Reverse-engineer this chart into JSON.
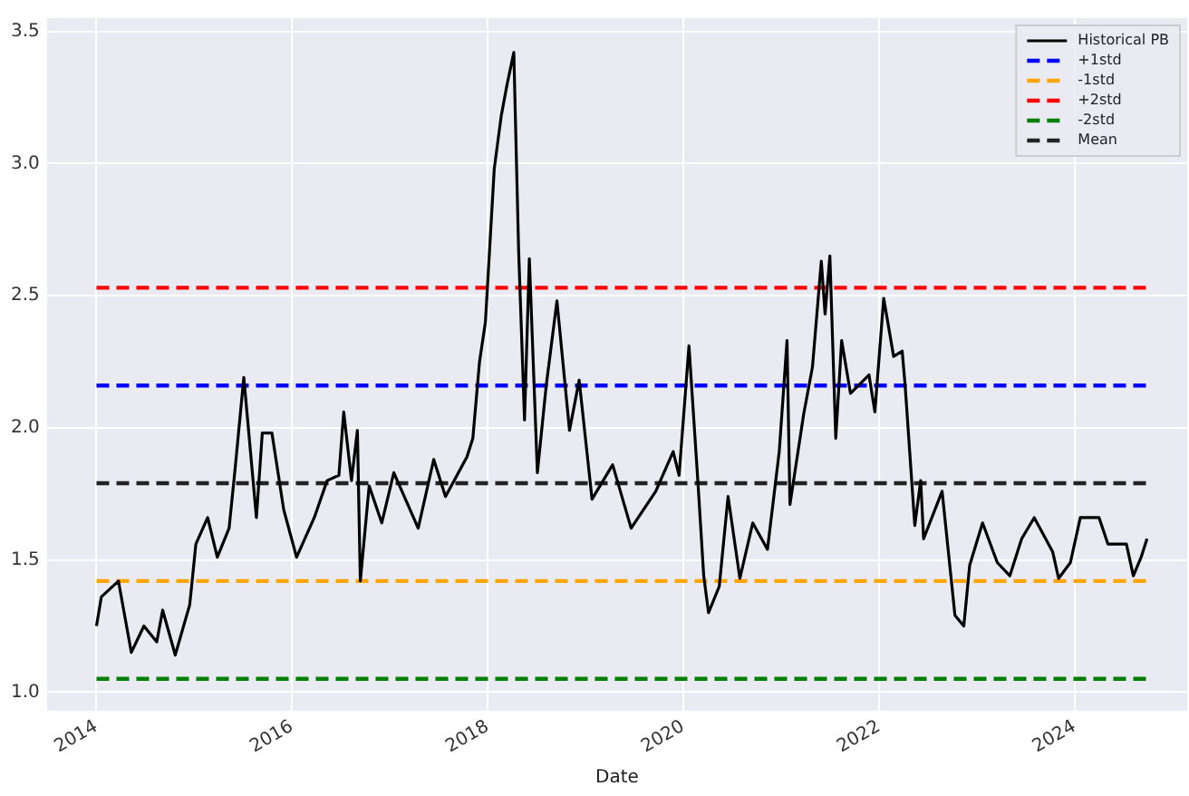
{
  "chart_data": {
    "type": "line",
    "xlabel": "Date",
    "legend": "top right",
    "grid": true,
    "marker": "none",
    "xlim": [
      "2013-07-01",
      "2025-02-25"
    ],
    "ylim": [
      0.93,
      3.55
    ],
    "xticks": [
      {
        "value": "2014-01-01",
        "label": "2014"
      },
      {
        "value": "2016-01-01",
        "label": "2016"
      },
      {
        "value": "2018-01-01",
        "label": "2018"
      },
      {
        "value": "2020-01-01",
        "label": "2020"
      },
      {
        "value": "2022-01-01",
        "label": "2022"
      },
      {
        "value": "2024-01-01",
        "label": "2024"
      }
    ],
    "yticks": [
      {
        "value": 1,
        "label": "1.0"
      },
      {
        "value": 1.5,
        "label": "1.5"
      },
      {
        "value": 2,
        "label": "2.0"
      },
      {
        "value": 2.5,
        "label": "2.5"
      },
      {
        "value": 3,
        "label": "3.0"
      },
      {
        "value": 3.5,
        "label": "3.5"
      }
    ],
    "series": [
      {
        "name": "Historical PB",
        "color": "#000000",
        "line_style": "solid",
        "x": [
          "2014-01-02",
          "2014-01-20",
          "2014-03-25",
          "2014-05-12",
          "2014-06-28",
          "2014-08-15",
          "2014-09-06",
          "2014-10-23",
          "2014-12-16",
          "2015-01-08",
          "2015-02-21",
          "2015-03-29",
          "2015-05-12",
          "2015-06-03",
          "2015-07-06",
          "2015-08-22",
          "2015-09-13",
          "2015-10-19",
          "2015-12-02",
          "2016-01-19",
          "2016-03-25",
          "2016-05-12",
          "2016-06-25",
          "2016-07-13",
          "2016-08-11",
          "2016-09-02",
          "2016-09-13",
          "2016-10-16",
          "2016-12-02",
          "2017-01-16",
          "2017-04-17",
          "2017-06-14",
          "2017-07-28",
          "2017-10-16",
          "2017-11-07",
          "2017-12-02",
          "2017-12-24",
          "2018-01-26",
          "2018-02-21",
          "2018-03-15",
          "2018-04-09",
          "2018-04-27",
          "2018-05-19",
          "2018-06-06",
          "2018-07-06",
          "2018-08-08",
          "2018-09-17",
          "2018-11-03",
          "2018-12-09",
          "2019-01-26",
          "2019-04-13",
          "2019-06-21",
          "2019-09-21",
          "2019-11-25",
          "2019-12-17",
          "2020-01-23",
          "2020-02-25",
          "2020-03-18",
          "2020-04-05",
          "2020-05-15",
          "2020-06-17",
          "2020-07-31",
          "2020-09-17",
          "2020-11-11",
          "2020-12-25",
          "2021-01-23",
          "2021-02-03",
          "2021-03-26",
          "2021-04-28",
          "2021-05-31",
          "2021-06-14",
          "2021-07-02",
          "2021-07-24",
          "2021-08-15",
          "2021-09-17",
          "2021-11-25",
          "2021-12-17",
          "2022-01-19",
          "2022-02-25",
          "2022-03-29",
          "2022-04-09",
          "2022-05-15",
          "2022-06-06",
          "2022-06-17",
          "2022-08-25",
          "2022-10-12",
          "2022-11-14",
          "2022-12-06",
          "2023-01-23",
          "2023-03-19",
          "2023-05-05",
          "2023-06-18",
          "2023-08-04",
          "2023-10-12",
          "2023-11-03",
          "2023-12-17",
          "2024-01-23",
          "2024-04-02",
          "2024-05-05",
          "2024-07-13",
          "2024-08-08",
          "2024-09-06",
          "2024-09-28"
        ],
        "values": [
          1.25,
          1.36,
          1.42,
          1.15,
          1.25,
          1.19,
          1.31,
          1.14,
          1.33,
          1.56,
          1.66,
          1.51,
          1.62,
          1.84,
          2.19,
          1.66,
          1.98,
          1.98,
          1.69,
          1.51,
          1.66,
          1.8,
          1.82,
          2.06,
          1.8,
          1.99,
          1.42,
          1.78,
          1.64,
          1.83,
          1.62,
          1.88,
          1.74,
          1.89,
          1.96,
          2.25,
          2.4,
          2.98,
          3.18,
          3.3,
          3.42,
          2.67,
          2.03,
          2.64,
          1.83,
          2.16,
          2.48,
          1.99,
          2.18,
          1.73,
          1.86,
          1.62,
          1.76,
          1.91,
          1.82,
          2.31,
          1.8,
          1.44,
          1.3,
          1.4,
          1.74,
          1.43,
          1.64,
          1.54,
          1.91,
          2.33,
          1.71,
          2.05,
          2.23,
          2.63,
          2.43,
          2.65,
          1.96,
          2.33,
          2.13,
          2.2,
          2.06,
          2.49,
          2.27,
          2.29,
          2.16,
          1.63,
          1.8,
          1.58,
          1.76,
          1.29,
          1.25,
          1.48,
          1.64,
          1.49,
          1.44,
          1.58,
          1.66,
          1.53,
          1.43,
          1.49,
          1.66,
          1.66,
          1.56,
          1.56,
          1.44,
          1.51,
          1.58
        ]
      },
      {
        "name": "+1std",
        "color": "#0000ff",
        "line_style": "dashed",
        "x": [
          "2014-01-02",
          "2024-09-28"
        ],
        "values": [
          2.16,
          2.16
        ]
      },
      {
        "name": "-1std",
        "color": "#ffa500",
        "line_style": "dashed",
        "x": [
          "2014-01-02",
          "2024-09-28"
        ],
        "values": [
          1.42,
          1.42
        ]
      },
      {
        "name": "+2std",
        "color": "#ff0000",
        "line_style": "dashed",
        "x": [
          "2014-01-02",
          "2024-09-28"
        ],
        "values": [
          2.53,
          2.53
        ]
      },
      {
        "name": "-2std",
        "color": "#008000",
        "line_style": "dashed",
        "x": [
          "2014-01-02",
          "2024-09-28"
        ],
        "values": [
          1.05,
          1.05
        ]
      },
      {
        "name": "Mean",
        "color": "#222222",
        "line_style": "dashed",
        "x": [
          "2014-01-02",
          "2024-09-28"
        ],
        "values": [
          1.79,
          1.79
        ]
      }
    ]
  }
}
